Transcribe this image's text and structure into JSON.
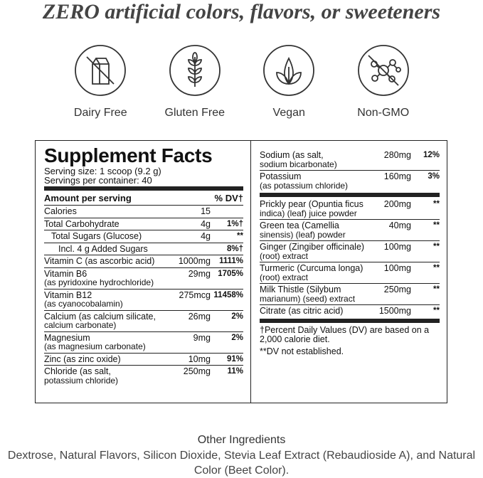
{
  "headline": "ZERO artificial colors, flavors, or sweeteners",
  "badges": [
    "Dairy Free",
    "Gluten Free",
    "Vegan",
    "Non-GMO"
  ],
  "facts": {
    "title": "Supplement Facts",
    "serving_size": "Serving size: 1 scoop (9.2 g)",
    "servings": "Servings per container: 40",
    "header": [
      "Amount per serving",
      "% DV†"
    ],
    "left_rows": [
      {
        "name": [
          "Calories"
        ],
        "amount": "15"
      },
      {
        "name": [
          "Total Carbohydrate"
        ],
        "amount": "4g",
        "dv": "1%†",
        "sub_rows": [
          {
            "name": [
              "Total Sugars (Glucose)"
            ],
            "amount": "4g",
            "dv": "**",
            "sub_rows": [
              {
                "name": [
                  "Incl. 4 g Added Sugars"
                ],
                "dv": "8%†"
              }
            ]
          }
        ]
      },
      {
        "name": [
          "Vitamin C (as ascorbic acid)"
        ],
        "amount": "1000mg",
        "dv": "1111%"
      },
      {
        "name": [
          "Vitamin B6",
          "(as pyridoxine hydrochloride)"
        ],
        "amount": "29mg",
        "dv": "1705%"
      },
      {
        "name": [
          "Vitamin B12",
          "(as cyanocobalamin)"
        ],
        "amount": "275mcg",
        "dv": "11458%"
      },
      {
        "name": [
          "Calcium (as calcium silicate,",
          "calcium carbonate)"
        ],
        "amount": "26mg",
        "dv": "2%"
      },
      {
        "name": [
          "Magnesium",
          "(as magnesium carbonate)"
        ],
        "amount": "9mg",
        "dv": "2%"
      },
      {
        "name": [
          "Zinc (as zinc oxide)"
        ],
        "amount": "10mg",
        "dv": "91%"
      },
      {
        "name": [
          "Chloride (as salt,",
          "potassium chloride)"
        ],
        "amount": "250mg",
        "dv": "11%"
      }
    ],
    "right_groups": [
      [
        {
          "name": [
            "Sodium (as salt,",
            "sodium bicarbonate)"
          ],
          "amount": "280mg",
          "dv": "12%"
        },
        {
          "name": [
            "Potassium",
            "(as potassium chloride)"
          ],
          "amount": "160mg",
          "dv": "3%"
        }
      ],
      [
        {
          "name": [
            "Prickly pear (Opuntia ficus",
            "indica) (leaf) juice powder"
          ],
          "amount": "200mg",
          "dv": "**"
        },
        {
          "name": [
            "Green tea (Camellia",
            "sinensis) (leaf) powder"
          ],
          "amount": "40mg",
          "dv": "**"
        },
        {
          "name": [
            "Ginger (Zingiber officinale)",
            "(root) extract"
          ],
          "amount": "100mg",
          "dv": "**"
        },
        {
          "name": [
            "Turmeric (Curcuma longa)",
            "(root) extract"
          ],
          "amount": "100mg",
          "dv": "**"
        },
        {
          "name": [
            "Milk Thistle (Silybum",
            "marianum) (seed) extract"
          ],
          "amount": "250mg",
          "dv": "**"
        },
        {
          "name": [
            "Citrate (as citric acid)"
          ],
          "amount": "1500mg",
          "dv": "**"
        }
      ]
    ],
    "footnotes": [
      "†Percent Daily Values (DV) are based on a 2,000 calorie diet.",
      "**DV not established."
    ]
  },
  "other_ingredients": {
    "title": "Other Ingredients",
    "text": "Dextrose, Natural Flavors, Silicon Dioxide, Stevia Leaf Extract (Rebaudioside A), and Natural Color (Beet Color)."
  }
}
